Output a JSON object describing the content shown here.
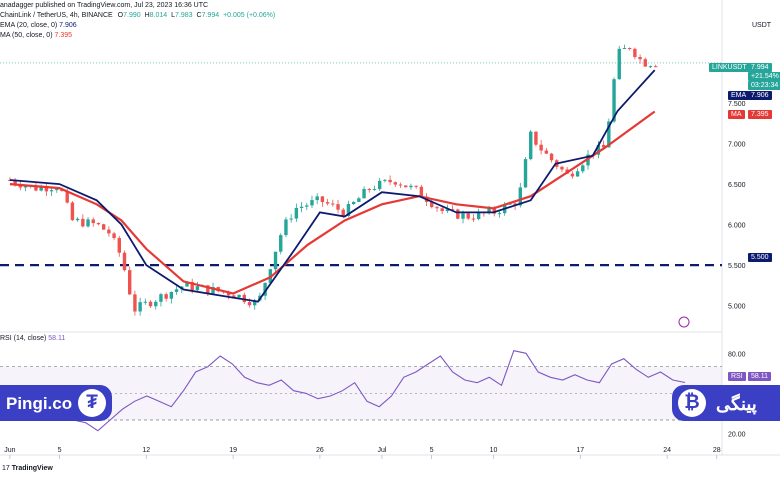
{
  "header": {
    "credit": "anadagger published on TradingView.com, Jul 23, 2023 16:36 UTC",
    "symbol": "ChainLink / TetherUS, 4h, BINANCE",
    "o_label": "O",
    "o_value": "7.990",
    "h_label": "H",
    "h_value": "8.014",
    "l_label": "L",
    "l_value": "7.983",
    "c_label": "C",
    "c_value": "7.994",
    "change": "+0.005 (+0.06%)",
    "ema_label": "EMA (20, close, 0)",
    "ema_value": "7.906",
    "ma_label": "MA (50, close, 0)",
    "ma_value": "7.395",
    "rsi_label": "RSI (14, close)",
    "rsi_value": "58.11"
  },
  "axis": {
    "currency": "USDT",
    "price_ticks": [
      "7.500",
      "7.000",
      "6.500",
      "6.000",
      "5.500",
      "5.000"
    ],
    "rsi_ticks": [
      "80.00",
      "20.00"
    ],
    "x_ticks": [
      "Jun",
      "5",
      "12",
      "19",
      "26",
      "Jul",
      "5",
      "10",
      "17",
      "24",
      "28"
    ]
  },
  "tags": {
    "symbol_tag": "LINKUSDT",
    "last_price": "7.994",
    "last_change": "+21.54%",
    "countdown": "03:23:34",
    "ema_tag": "EMA",
    "ema_value": "7.906",
    "ma_tag": "MA",
    "ma_value": "7.395",
    "level_value": "5.500",
    "rsi_tag": "RSI",
    "rsi_value": "58.11"
  },
  "brand": {
    "left_text": "Pingi.co",
    "right_text": "پینگی",
    "footer": "TradingView"
  },
  "colors": {
    "up": "#26a69a",
    "down": "#ef5350",
    "ema": "#0d1b6e",
    "ma": "#e53935",
    "rsi": "#7e57c2",
    "level": "#0d1b6e",
    "brand": "#3b3fc4"
  },
  "chart_data": {
    "type": "candlestick",
    "title": "ChainLink / TetherUS, 4h, BINANCE",
    "x_ticks": [
      "Jun",
      "5",
      "12",
      "19",
      "26",
      "Jul",
      "5",
      "10",
      "17",
      "24",
      "28"
    ],
    "ylim": [
      4.7,
      8.4
    ],
    "close_series": {
      "name": "close",
      "x": [
        "Jun 1",
        "Jun 3",
        "Jun 5",
        "Jun 6",
        "Jun 8",
        "Jun 9",
        "Jun 10",
        "Jun 11",
        "Jun 13",
        "Jun 15",
        "Jun 17",
        "Jun 19",
        "Jun 21",
        "Jun 22",
        "Jun 23",
        "Jun 24",
        "Jun 26",
        "Jun 28",
        "Jun 30",
        "Jul 2",
        "Jul 4",
        "Jul 6",
        "Jul 8",
        "Jul 10",
        "Jul 12",
        "Jul 13",
        "Jul 14",
        "Jul 16",
        "Jul 18",
        "Jul 19",
        "Jul 20",
        "Jul 21",
        "Jul 22",
        "Jul 23"
      ],
      "values": [
        6.55,
        6.45,
        6.48,
        6.05,
        6.0,
        5.9,
        5.6,
        4.95,
        5.1,
        5.25,
        5.2,
        5.15,
        5.02,
        5.5,
        5.95,
        6.2,
        6.3,
        6.15,
        6.45,
        6.55,
        6.4,
        6.15,
        6.1,
        6.15,
        6.3,
        7.1,
        6.9,
        6.6,
        6.9,
        6.95,
        8.1,
        8.2,
        8.0,
        7.994
      ]
    },
    "ema_20": {
      "name": "EMA (20, close, 0)",
      "x": [
        "Jun 1",
        "Jun 5",
        "Jun 8",
        "Jun 10",
        "Jun 12",
        "Jun 15",
        "Jun 19",
        "Jun 21",
        "Jun 24",
        "Jun 26",
        "Jun 28",
        "Jul 1",
        "Jul 4",
        "Jul 7",
        "Jul 10",
        "Jul 13",
        "Jul 15",
        "Jul 18",
        "Jul 20",
        "Jul 23"
      ],
      "values": [
        6.55,
        6.5,
        6.3,
        6.0,
        5.5,
        5.2,
        5.1,
        5.05,
        5.7,
        6.15,
        6.1,
        6.4,
        6.35,
        6.15,
        6.15,
        6.3,
        6.75,
        6.85,
        7.4,
        7.906
      ]
    },
    "ma_50": {
      "name": "MA (50, close, 0)",
      "x": [
        "Jun 1",
        "Jun 5",
        "Jun 8",
        "Jun 10",
        "Jun 12",
        "Jun 15",
        "Jun 19",
        "Jun 22",
        "Jun 25",
        "Jun 28",
        "Jul 1",
        "Jul 4",
        "Jul 7",
        "Jul 10",
        "Jul 13",
        "Jul 16",
        "Jul 19",
        "Jul 23"
      ],
      "values": [
        6.5,
        6.45,
        6.25,
        6.05,
        5.7,
        5.3,
        5.15,
        5.35,
        5.75,
        6.05,
        6.25,
        6.35,
        6.25,
        6.2,
        6.35,
        6.65,
        6.95,
        7.395
      ]
    },
    "horizontal_level": 5.5,
    "rsi": {
      "name": "RSI (14, close)",
      "ylim": [
        15,
        90
      ],
      "levels": [
        70,
        30
      ],
      "values": [
        40,
        38,
        44,
        50,
        52,
        38,
        30,
        28,
        22,
        30,
        38,
        44,
        48,
        44,
        40,
        52,
        66,
        70,
        78,
        72,
        62,
        58,
        56,
        60,
        52,
        50,
        46,
        48,
        52,
        58,
        44,
        40,
        48,
        62,
        66,
        72,
        78,
        66,
        60,
        58,
        62,
        56,
        82,
        80,
        66,
        62,
        60,
        64,
        60,
        58,
        72,
        76,
        68,
        62,
        66,
        60,
        58.11
      ]
    }
  }
}
